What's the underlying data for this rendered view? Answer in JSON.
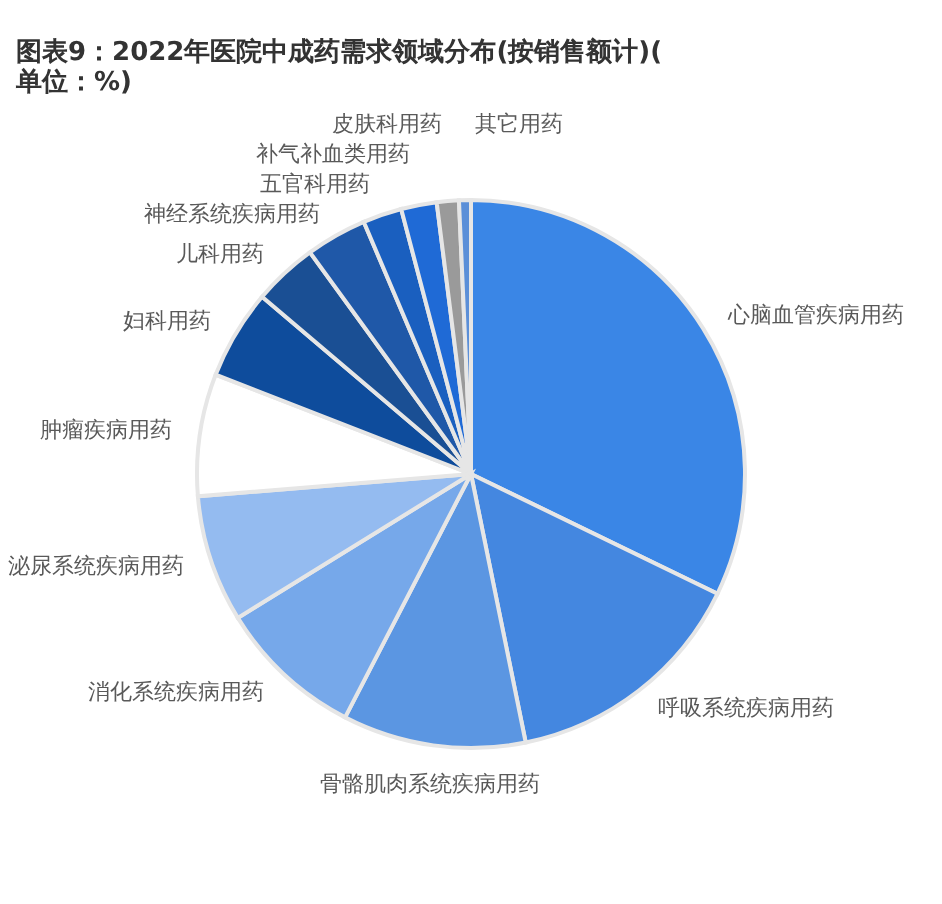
{
  "chart_data": {
    "type": "pie",
    "title": "图表9：2022年医院中成药需求领域分布(按销售额计)(单位：%)",
    "categories": [
      "心脑血管疾病用药",
      "呼吸系统疾病用药",
      "骨骼肌肉系统疾病用药",
      "消化系统疾病用药",
      "泌尿系统疾病用药",
      "肿瘤疾病用药",
      "妇科用药",
      "儿科用药",
      "神经系统疾病用药",
      "五官科用药",
      "补气补血类用药",
      "皮肤科用药",
      "其它用药"
    ],
    "values": [
      32.2,
      14.6,
      10.8,
      8.6,
      7.5,
      7.2,
      5.3,
      3.8,
      3.6,
      2.3,
      2.1,
      1.3,
      0.7
    ],
    "colors": [
      "#3a86e6",
      "#4487e0",
      "#5b96e2",
      "#76a8ea",
      "#94bbf0",
      "#ffffff",
      "#0e4c9c",
      "#1a4f94",
      "#1f58a8",
      "#1a5fbf",
      "#1f6ad6",
      "#9a9a9a",
      "#5b8fd8"
    ],
    "legend": false
  }
}
